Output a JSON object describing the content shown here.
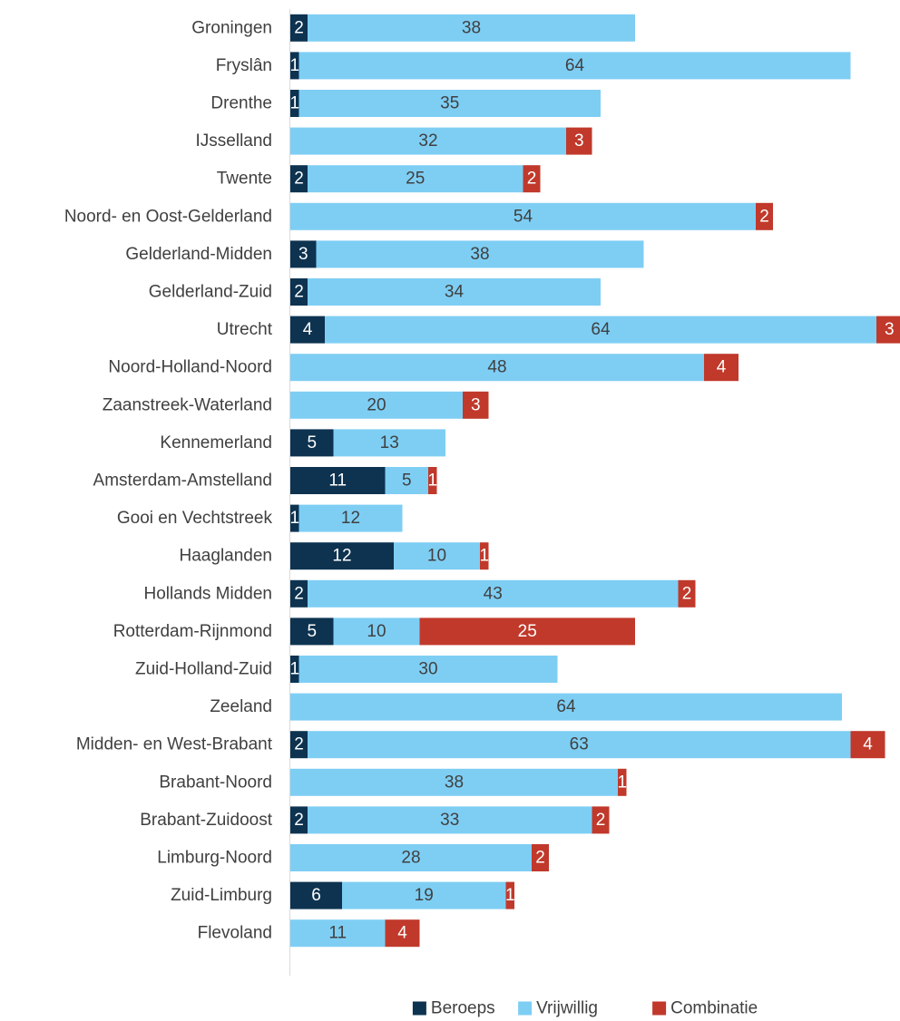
{
  "chart_data": {
    "type": "bar",
    "orientation": "horizontal",
    "stacked": true,
    "grid": false,
    "legend_position": "bottom",
    "xlim": [
      0,
      70
    ],
    "categories": [
      "Groningen",
      "Fryslân",
      "Drenthe",
      "IJsselland",
      "Twente",
      "Noord- en Oost-Gelderland",
      "Gelderland-Midden",
      "Gelderland-Zuid",
      "Utrecht",
      "Noord-Holland-Noord",
      "Zaanstreek-Waterland",
      "Kennemerland",
      "Amsterdam-Amstelland",
      "Gooi en Vechtstreek",
      "Haaglanden",
      "Hollands Midden",
      "Rotterdam-Rijnmond",
      "Zuid-Holland-Zuid",
      "Zeeland",
      "Midden- en West-Brabant",
      "Brabant-Noord",
      "Brabant-Zuidoost",
      "Limburg-Noord",
      "Zuid-Limburg",
      "Flevoland"
    ],
    "series": [
      {
        "name": "Beroeps",
        "color": "#0d3350",
        "label_color": "#ffffff",
        "values": [
          2,
          1,
          1,
          0,
          2,
          0,
          3,
          2,
          4,
          0,
          0,
          5,
          11,
          1,
          12,
          2,
          5,
          1,
          0,
          2,
          0,
          2,
          0,
          6,
          0
        ]
      },
      {
        "name": "Vrijwillig",
        "color": "#7ecef4",
        "label_color": "#404040",
        "values": [
          38,
          64,
          35,
          32,
          25,
          54,
          38,
          34,
          64,
          48,
          20,
          13,
          5,
          12,
          10,
          43,
          10,
          30,
          64,
          63,
          38,
          33,
          28,
          19,
          11
        ]
      },
      {
        "name": "Combinatie",
        "color": "#c0392b",
        "label_color": "#ffffff",
        "values": [
          0,
          0,
          0,
          3,
          2,
          2,
          0,
          0,
          3,
          4,
          3,
          0,
          1,
          0,
          1,
          2,
          25,
          0,
          0,
          4,
          1,
          2,
          2,
          1,
          4
        ]
      }
    ]
  }
}
